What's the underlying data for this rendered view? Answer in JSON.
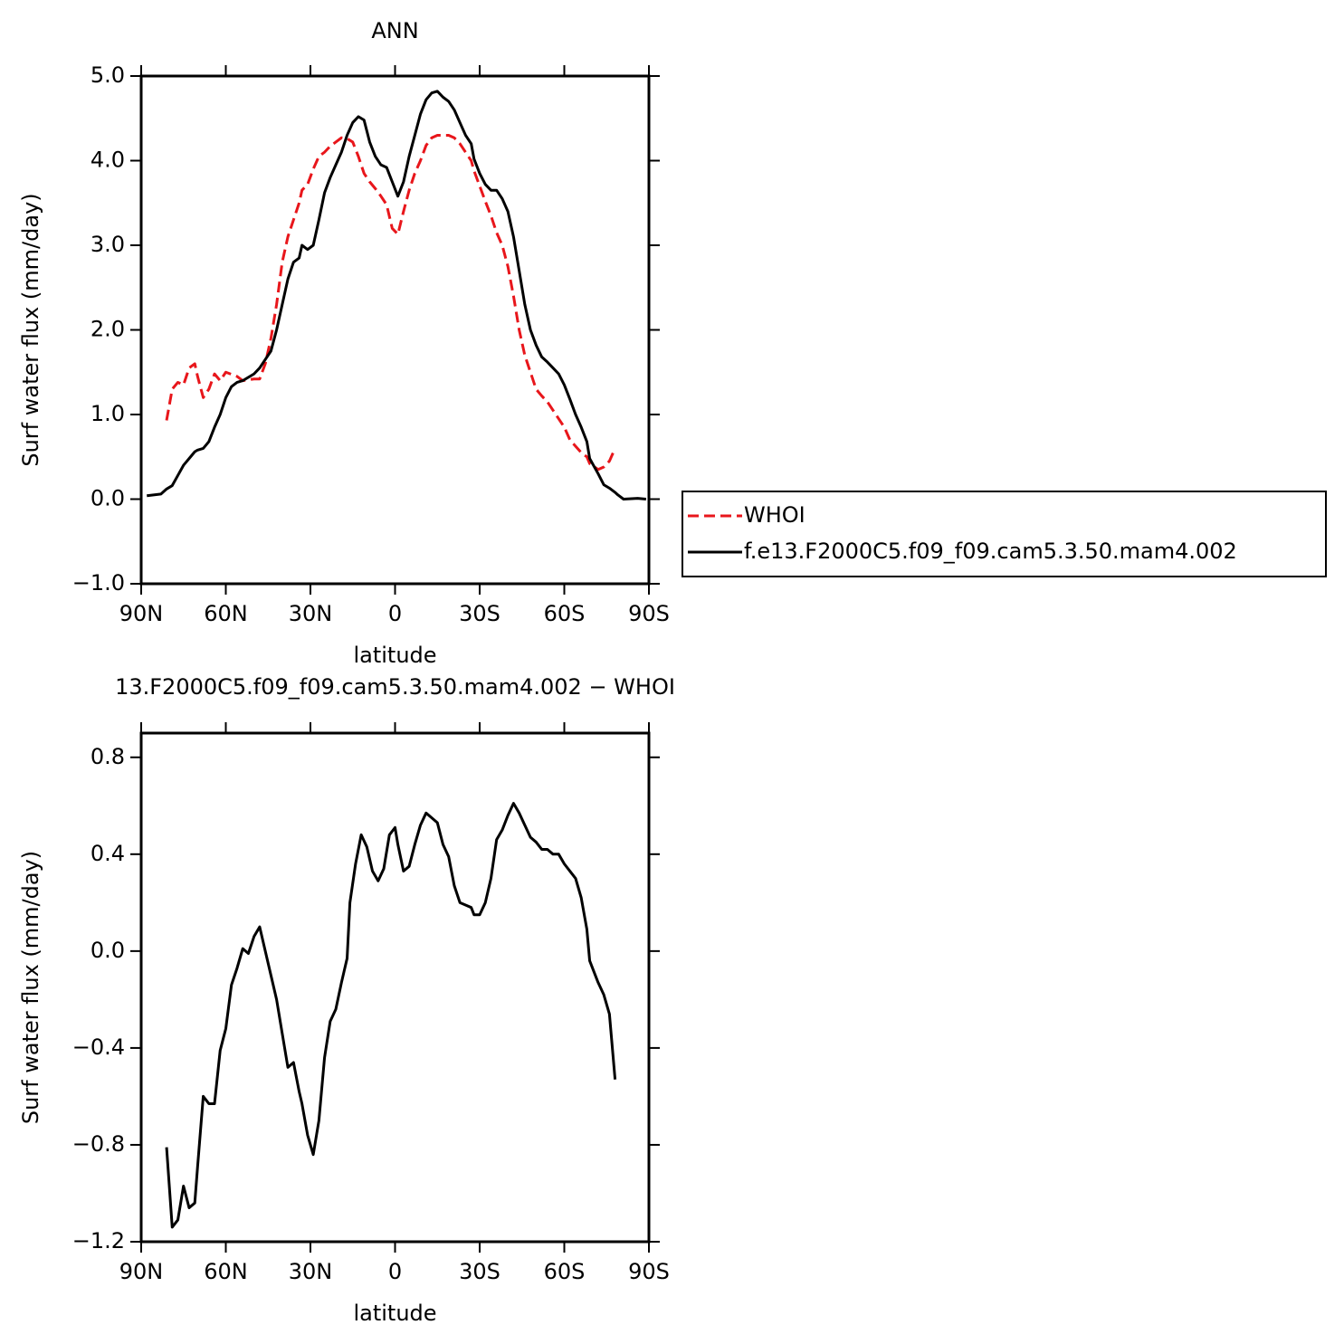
{
  "chart_data": [
    {
      "type": "line",
      "title": "ANN",
      "xlabel": "latitude",
      "ylabel": "Surf water flux (mm/day)",
      "xlim": [
        90,
        -90
      ],
      "xticks": [
        {
          "value": 90,
          "label": "90N"
        },
        {
          "value": 60,
          "label": "60N"
        },
        {
          "value": 30,
          "label": "30N"
        },
        0,
        {
          "value": -30,
          "label": "30S"
        },
        {
          "value": -60,
          "label": "60S"
        },
        {
          "value": -90,
          "label": "90S"
        }
      ],
      "ylim": [
        -1,
        5
      ],
      "yticks": [
        {
          "value": -1,
          "label": "−1.0"
        },
        {
          "value": 0,
          "label": "0.0"
        },
        {
          "value": 1,
          "label": "1.0"
        },
        {
          "value": 2,
          "label": "2.0"
        },
        {
          "value": 3,
          "label": "3.0"
        },
        {
          "value": 4,
          "label": "4.0"
        },
        {
          "value": 5,
          "label": "5.0"
        }
      ],
      "legend": "right",
      "series": [
        {
          "name": "WHOI",
          "color": "#e8161b",
          "linestyle": "dashed",
          "x": [
            81,
            79,
            77,
            75,
            73,
            71,
            70,
            68,
            66,
            64,
            62,
            60,
            56,
            54,
            50,
            48,
            46,
            44,
            42,
            40,
            38,
            36,
            34,
            33,
            31,
            29,
            27,
            25,
            23,
            21,
            19,
            17,
            15,
            13,
            11,
            9,
            7,
            5,
            3,
            1,
            -1,
            -3,
            -5,
            -7,
            -9,
            -11,
            -13,
            -15,
            -19,
            -21,
            -23,
            -25,
            -27,
            -28,
            -30,
            -32,
            -34,
            -36,
            -38,
            -40,
            -42,
            -44,
            -46,
            -48,
            -50,
            -52,
            -54,
            -56,
            -58,
            -60,
            -62,
            -66,
            -68,
            -69,
            -72,
            -74,
            -76,
            -78
          ],
          "values": [
            0.93,
            1.3,
            1.38,
            1.35,
            1.55,
            1.6,
            1.45,
            1.2,
            1.3,
            1.48,
            1.4,
            1.5,
            1.45,
            1.4,
            1.42,
            1.42,
            1.6,
            1.9,
            2.3,
            2.8,
            3.1,
            3.3,
            3.5,
            3.65,
            3.72,
            3.9,
            4.05,
            4.1,
            4.17,
            4.22,
            4.27,
            4.26,
            4.22,
            4.05,
            3.85,
            3.75,
            3.67,
            3.58,
            3.48,
            3.2,
            3.13,
            3.4,
            3.65,
            3.85,
            4.0,
            4.18,
            4.27,
            4.3,
            4.3,
            4.27,
            4.2,
            4.1,
            4.0,
            3.88,
            3.7,
            3.52,
            3.35,
            3.15,
            3.0,
            2.75,
            2.4,
            2.0,
            1.7,
            1.5,
            1.3,
            1.22,
            1.15,
            1.05,
            0.95,
            0.85,
            0.7,
            0.55,
            0.5,
            0.42,
            0.35,
            0.38,
            0.45,
            0.6
          ]
        },
        {
          "name": "f.e13.F2000C5.f09_f09.cam5.3.50.mam4.002",
          "color": "#000000",
          "linestyle": "solid",
          "x": [
            88,
            83,
            81,
            79,
            77,
            75,
            73,
            71,
            70,
            68,
            66,
            64,
            62,
            60,
            58,
            56,
            54,
            50,
            48,
            46,
            44,
            42,
            40,
            38,
            36,
            34,
            33,
            31,
            29,
            27,
            25,
            23,
            21,
            19,
            17,
            15,
            13,
            11,
            9,
            7,
            5,
            3,
            1,
            -1,
            -3,
            -5,
            -7,
            -9,
            -11,
            -13,
            -15,
            -17,
            -19,
            -21,
            -23,
            -25,
            -27,
            -28,
            -30,
            -32,
            -34,
            -36,
            -38,
            -40,
            -42,
            -44,
            -46,
            -48,
            -50,
            -52,
            -54,
            -56,
            -58,
            -60,
            -62,
            -64,
            -66,
            -68,
            -69,
            -72,
            -74,
            -76,
            -78,
            -79,
            -81,
            -86,
            -89
          ],
          "values": [
            0.04,
            0.06,
            0.12,
            0.16,
            0.28,
            0.4,
            0.48,
            0.56,
            0.58,
            0.6,
            0.68,
            0.85,
            1.0,
            1.2,
            1.33,
            1.38,
            1.4,
            1.48,
            1.55,
            1.65,
            1.75,
            2.0,
            2.3,
            2.6,
            2.8,
            2.85,
            3.0,
            2.95,
            3.0,
            3.3,
            3.62,
            3.8,
            3.95,
            4.1,
            4.3,
            4.45,
            4.52,
            4.48,
            4.22,
            4.05,
            3.95,
            3.92,
            3.75,
            3.58,
            3.75,
            4.05,
            4.3,
            4.55,
            4.72,
            4.8,
            4.82,
            4.75,
            4.7,
            4.6,
            4.45,
            4.3,
            4.2,
            4.02,
            3.85,
            3.72,
            3.65,
            3.65,
            3.55,
            3.4,
            3.1,
            2.7,
            2.3,
            2.0,
            1.82,
            1.68,
            1.62,
            1.55,
            1.48,
            1.35,
            1.18,
            1.0,
            0.85,
            0.68,
            0.48,
            0.3,
            0.17,
            0.13,
            0.08,
            0.05,
            0.0,
            0.01,
            0.0
          ]
        }
      ]
    },
    {
      "type": "line",
      "title": "13.F2000C5.f09_f09.cam5.3.50.mam4.002 − WHOI",
      "xlabel": "latitude",
      "ylabel": "Surf water flux (mm/day)",
      "xlim": [
        90,
        -90
      ],
      "xticks": [
        {
          "value": 90,
          "label": "90N"
        },
        {
          "value": 60,
          "label": "60N"
        },
        {
          "value": 30,
          "label": "30N"
        },
        0,
        {
          "value": -30,
          "label": "30S"
        },
        {
          "value": -60,
          "label": "60S"
        },
        {
          "value": -90,
          "label": "90S"
        }
      ],
      "ylim": [
        -1.2,
        0.9
      ],
      "yticks": [
        {
          "value": -1.2,
          "label": "−1.2"
        },
        {
          "value": -0.8,
          "label": "−0.8"
        },
        {
          "value": -0.4,
          "label": "−0.4"
        },
        {
          "value": 0,
          "label": "0.0"
        },
        0.4,
        0.8
      ],
      "series": [
        {
          "color": "#000000",
          "linestyle": "solid",
          "x": [
            81,
            79,
            77,
            75,
            73,
            71,
            70,
            68,
            66,
            64,
            62,
            60,
            58,
            56,
            54,
            52,
            50,
            48,
            46,
            44,
            42,
            40,
            38,
            36,
            34,
            33,
            31,
            29,
            27,
            25,
            23,
            21,
            19,
            17,
            16,
            14,
            12,
            10,
            8,
            6,
            4,
            2,
            0,
            -1,
            -3,
            -5,
            -7,
            -9,
            -11,
            -13,
            -15,
            -17,
            -19,
            -21,
            -23,
            -25,
            -27,
            -28,
            -30,
            -32,
            -34,
            -36,
            -38,
            -40,
            -42,
            -44,
            -46,
            -48,
            -50,
            -52,
            -54,
            -56,
            -58,
            -60,
            -62,
            -64,
            -66,
            -68,
            -69,
            -72,
            -74,
            -76,
            -78
          ],
          "values": [
            -0.81,
            -1.14,
            -1.11,
            -0.97,
            -1.06,
            -1.04,
            -0.89,
            -0.6,
            -0.63,
            -0.63,
            -0.41,
            -0.32,
            -0.14,
            -0.07,
            0.01,
            -0.01,
            0.06,
            0.1,
            0.0,
            -0.1,
            -0.2,
            -0.34,
            -0.48,
            -0.46,
            -0.58,
            -0.63,
            -0.76,
            -0.84,
            -0.7,
            -0.44,
            -0.29,
            -0.24,
            -0.13,
            -0.03,
            0.2,
            0.36,
            0.48,
            0.43,
            0.33,
            0.29,
            0.34,
            0.48,
            0.51,
            0.44,
            0.33,
            0.35,
            0.44,
            0.52,
            0.57,
            0.55,
            0.53,
            0.44,
            0.39,
            0.27,
            0.2,
            0.19,
            0.18,
            0.15,
            0.15,
            0.2,
            0.3,
            0.46,
            0.5,
            0.56,
            0.61,
            0.57,
            0.52,
            0.47,
            0.45,
            0.42,
            0.42,
            0.4,
            0.4,
            0.36,
            0.33,
            0.3,
            0.22,
            0.09,
            -0.04,
            -0.13,
            -0.18,
            -0.26,
            -0.53
          ]
        }
      ]
    }
  ]
}
